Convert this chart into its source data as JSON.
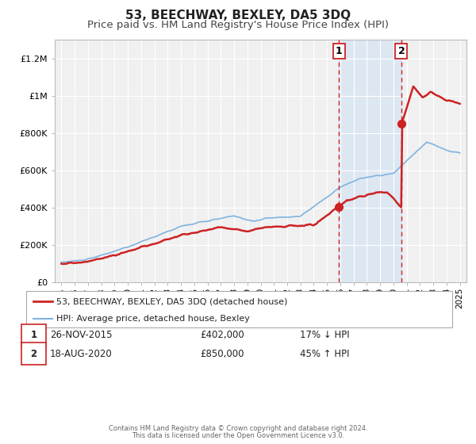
{
  "title": "53, BEECHWAY, BEXLEY, DA5 3DQ",
  "subtitle": "Price paid vs. HM Land Registry's House Price Index (HPI)",
  "title_fontsize": 11,
  "subtitle_fontsize": 9.5,
  "background_color": "#ffffff",
  "plot_bg_color": "#f0f0f0",
  "grid_color": "#ffffff",
  "ylabel_ticks": [
    "£0",
    "£200K",
    "£400K",
    "£600K",
    "£800K",
    "£1M",
    "£1.2M"
  ],
  "ytick_values": [
    0,
    200000,
    400000,
    600000,
    800000,
    1000000,
    1200000
  ],
  "ylim": [
    0,
    1300000
  ],
  "xlim_start": 1994.5,
  "xlim_end": 2025.5,
  "hpi_color": "#7fb3e0",
  "price_color": "#cc2222",
  "hpi_linewidth": 1.2,
  "price_linewidth": 1.8,
  "annotation1_date": 2015.9,
  "annotation2_date": 2020.6,
  "annotation1_label": "1",
  "annotation2_label": "2",
  "annotation1_price": 402000,
  "annotation2_price": 850000,
  "sale1_text": "26-NOV-2015",
  "sale1_price_text": "£402,000",
  "sale1_hpi_text": "17% ↓ HPI",
  "sale2_text": "18-AUG-2020",
  "sale2_price_text": "£850,000",
  "sale2_hpi_text": "45% ↑ HPI",
  "legend_label1": "53, BEECHWAY, BEXLEY, DA5 3DQ (detached house)",
  "legend_label2": "HPI: Average price, detached house, Bexley",
  "footer_text1": "Contains HM Land Registry data © Crown copyright and database right 2024.",
  "footer_text2": "This data is licensed under the Open Government Licence v3.0.",
  "shade_color": "#cce0f5",
  "shade_alpha": 0.5
}
